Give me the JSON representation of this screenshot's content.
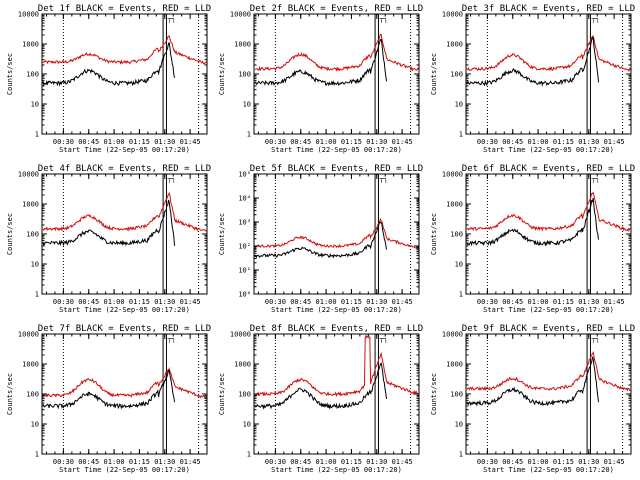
{
  "chart_data": {
    "type": "line",
    "figure": "RHESSI detector count rate panels",
    "x_unit": "time",
    "x_range": [
      "00:17:20",
      "01:55:00"
    ],
    "x_ticks": [
      "00:30",
      "00:45",
      "01:00",
      "01:15",
      "01:30",
      "01:45"
    ],
    "y_scale": "log",
    "ylabel": "Counts/sec",
    "xlabel": "Start Time (22-Sep-05 00:17:20)",
    "dotted_markers": [
      "00:30",
      "01:50"
    ],
    "attenuator_band": [
      "01:29",
      "01:31"
    ],
    "attenuator_glyph": "┬┐",
    "series_names": [
      "Events",
      "LLD"
    ],
    "colors": {
      "events": "#000000",
      "lld": "#d01010"
    },
    "panels": [
      {
        "title": "Det 1f BLACK = Events, RED = LLD",
        "ylim": [
          1,
          10000
        ],
        "y_ticks": [
          "1",
          "10",
          "100",
          "1000",
          "10000"
        ],
        "events": {
          "base": 50,
          "hump": 130,
          "peak": 1100,
          "end": 45
        },
        "lld": {
          "base": 250,
          "hump": 470,
          "peak": 1850,
          "end": 240
        }
      },
      {
        "title": "Det 2f BLACK = Events, RED = LLD",
        "ylim": [
          1,
          10000
        ],
        "y_ticks": [
          "1",
          "10",
          "100",
          "1000",
          "10000"
        ],
        "events": {
          "base": 50,
          "hump": 120,
          "peak": 1500,
          "end": 35
        },
        "lld": {
          "base": 150,
          "hump": 450,
          "peak": 2100,
          "end": 140
        }
      },
      {
        "title": "Det 3f BLACK = Events, RED = LLD",
        "ylim": [
          1,
          10000
        ],
        "y_ticks": [
          "1",
          "10",
          "100",
          "1000",
          "10000"
        ],
        "events": {
          "base": 50,
          "hump": 130,
          "peak": 1700,
          "end": 30
        },
        "lld": {
          "base": 150,
          "hump": 430,
          "peak": 2000,
          "end": 140
        }
      },
      {
        "title": "Det 4f BLACK = Events, RED = LLD",
        "ylim": [
          1,
          10000
        ],
        "y_ticks": [
          "1",
          "10",
          "100",
          "1000",
          "10000"
        ],
        "events": {
          "base": 50,
          "hump": 120,
          "peak": 1400,
          "end": 25
        },
        "lld": {
          "base": 150,
          "hump": 400,
          "peak": 2400,
          "end": 130
        }
      },
      {
        "title": "Det 5f BLACK = Events, RED = LLD",
        "ylim": [
          1,
          100000
        ],
        "y_ticks": [
          "10⁰",
          "10¹",
          "10²",
          "10³",
          "10⁴",
          "10⁵"
        ],
        "events": {
          "base": 40,
          "hump": 80,
          "peak": 1200,
          "end": 40
        },
        "lld": {
          "base": 100,
          "hump": 230,
          "peak": 1300,
          "end": 90
        }
      },
      {
        "title": "Det 6f BLACK = Events, RED = LLD",
        "ylim": [
          1,
          10000
        ],
        "y_ticks": [
          "1",
          "10",
          "100",
          "1000",
          "10000"
        ],
        "events": {
          "base": 50,
          "hump": 130,
          "peak": 1600,
          "end": 30
        },
        "lld": {
          "base": 150,
          "hump": 420,
          "peak": 2600,
          "end": 140
        }
      },
      {
        "title": "Det 7f BLACK = Events, RED = LLD",
        "ylim": [
          1,
          10000
        ],
        "y_ticks": [
          "1",
          "10",
          "100",
          "1000",
          "10000"
        ],
        "events": {
          "base": 40,
          "hump": 100,
          "peak": 600,
          "end": 30
        },
        "lld": {
          "base": 90,
          "hump": 300,
          "peak": 700,
          "end": 80
        }
      },
      {
        "title": "Det 8f BLACK = Events, RED = LLD",
        "ylim": [
          1,
          10000
        ],
        "y_ticks": [
          "1",
          "10",
          "100",
          "1000",
          "10000"
        ],
        "events": {
          "base": 40,
          "hump": 140,
          "peak": 1200,
          "end": 35
        },
        "lld": {
          "base": 100,
          "hump": 300,
          "peak": 2200,
          "end": 110
        },
        "lld_spike": {
          "from": "01:23",
          "to": "01:26",
          "value": 8000
        }
      },
      {
        "title": "Det 9f BLACK = Events, RED = LLD",
        "ylim": [
          1,
          10000
        ],
        "y_ticks": [
          "1",
          "10",
          "100",
          "1000",
          "10000"
        ],
        "events": {
          "base": 50,
          "hump": 140,
          "peak": 1900,
          "end": 30
        },
        "lld": {
          "base": 150,
          "hump": 330,
          "peak": 2700,
          "end": 140
        }
      }
    ]
  }
}
